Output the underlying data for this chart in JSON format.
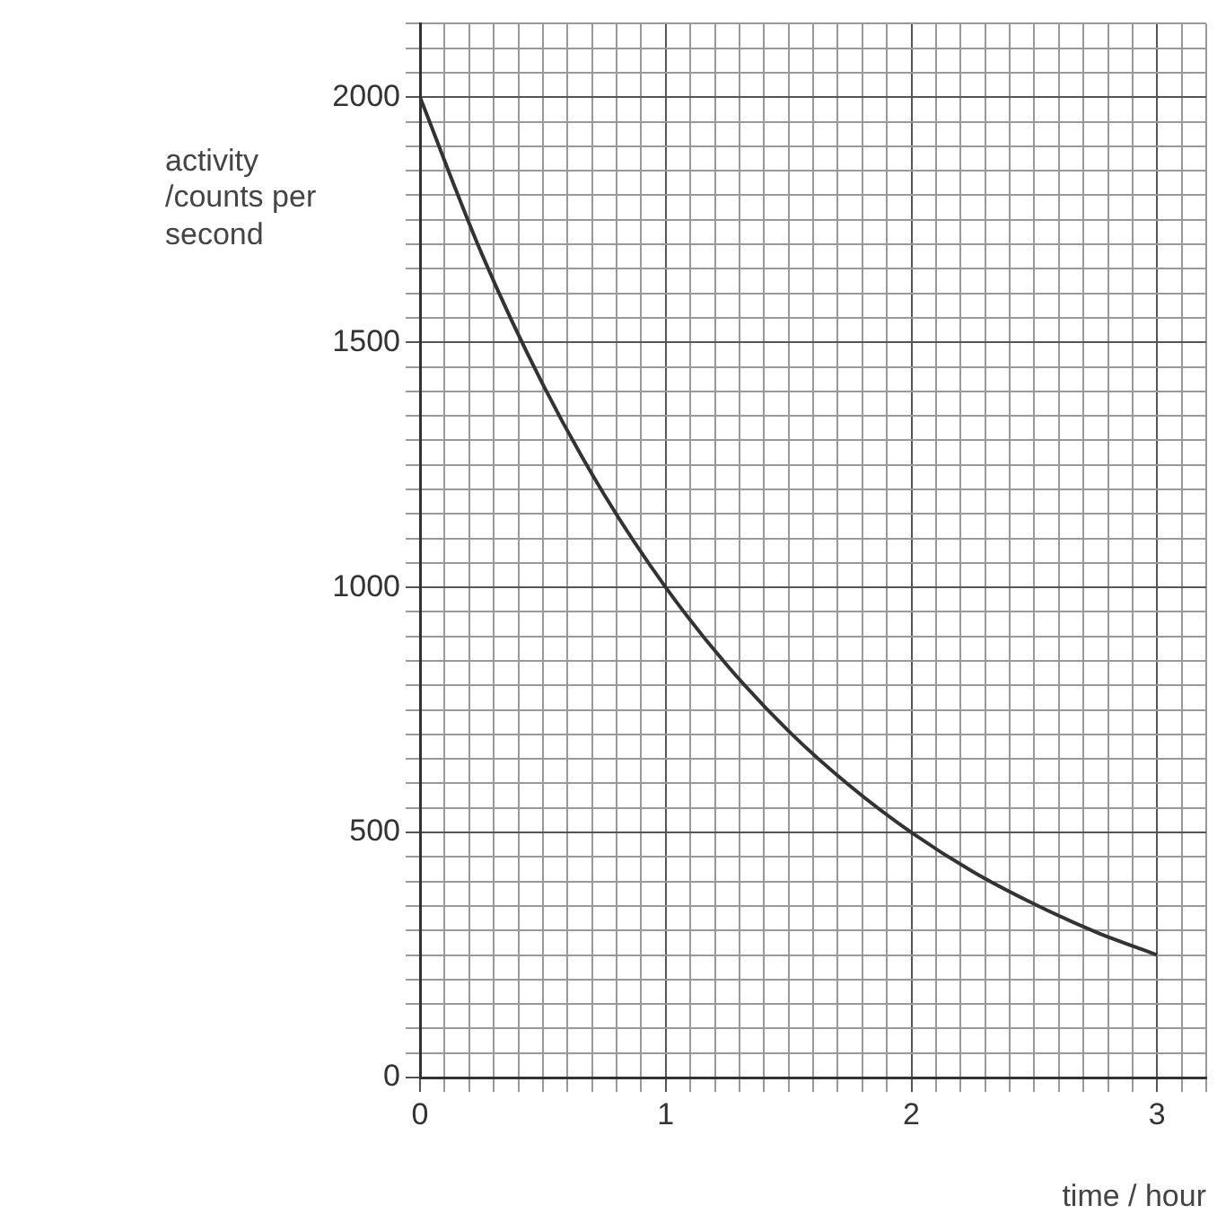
{
  "chart_data": {
    "type": "line",
    "xlabel": "time / hour",
    "ylabel": "activity\n/counts per\nsecond",
    "x": [
      0,
      0.25,
      0.5,
      0.75,
      1,
      1.25,
      1.5,
      1.75,
      2,
      2.25,
      2.5,
      2.75,
      3
    ],
    "series": [
      {
        "color": "#333333",
        "values": [
          2000,
          1682,
          1414,
          1189,
          1000,
          841,
          707,
          595,
          500,
          420,
          354,
          297,
          250
        ]
      }
    ],
    "xlim": [
      0,
      3.2
    ],
    "ylim": [
      0,
      2150
    ],
    "xticks": [
      0,
      {
        "value": 0.1,
        "label": null
      },
      {
        "value": 0.2,
        "label": null
      },
      {
        "value": 0.3,
        "label": null
      },
      {
        "value": 0.4,
        "label": null
      },
      {
        "value": 0.5,
        "label": null
      },
      {
        "value": 0.6,
        "label": null
      },
      {
        "value": 0.7,
        "label": null
      },
      {
        "value": 0.8,
        "label": null
      },
      {
        "value": 0.9,
        "label": null
      },
      1,
      {
        "value": 1.1,
        "label": null
      },
      {
        "value": 1.2,
        "label": null
      },
      {
        "value": 1.3,
        "label": null
      },
      {
        "value": 1.4,
        "label": null
      },
      {
        "value": 1.5,
        "label": null
      },
      {
        "value": 1.6,
        "label": null
      },
      {
        "value": 1.7,
        "label": null
      },
      {
        "value": 1.8,
        "label": null
      },
      {
        "value": 1.9,
        "label": null
      },
      2,
      {
        "value": 2.1,
        "label": null
      },
      {
        "value": 2.2,
        "label": null
      },
      {
        "value": 2.3,
        "label": null
      },
      {
        "value": 2.4,
        "label": null
      },
      {
        "value": 2.5,
        "label": null
      },
      {
        "value": 2.6,
        "label": null
      },
      {
        "value": 2.7,
        "label": null
      },
      {
        "value": 2.8,
        "label": null
      },
      {
        "value": 2.9,
        "label": null
      },
      3,
      {
        "value": 3.1,
        "label": null
      },
      {
        "value": 3.2,
        "label": null
      }
    ],
    "yticks": [
      0,
      {
        "value": 50,
        "label": null
      },
      {
        "value": 100,
        "label": null
      },
      {
        "value": 150,
        "label": null
      },
      {
        "value": 200,
        "label": null
      },
      {
        "value": 250,
        "label": null
      },
      {
        "value": 300,
        "label": null
      },
      {
        "value": 350,
        "label": null
      },
      {
        "value": 400,
        "label": null
      },
      {
        "value": 450,
        "label": null
      },
      500,
      {
        "value": 550,
        "label": null
      },
      {
        "value": 600,
        "label": null
      },
      {
        "value": 650,
        "label": null
      },
      {
        "value": 700,
        "label": null
      },
      {
        "value": 750,
        "label": null
      },
      {
        "value": 800,
        "label": null
      },
      {
        "value": 850,
        "label": null
      },
      {
        "value": 900,
        "label": null
      },
      {
        "value": 950,
        "label": null
      },
      1000,
      {
        "value": 1050,
        "label": null
      },
      {
        "value": 1100,
        "label": null
      },
      {
        "value": 1150,
        "label": null
      },
      {
        "value": 1200,
        "label": null
      },
      {
        "value": 1250,
        "label": null
      },
      {
        "value": 1300,
        "label": null
      },
      {
        "value": 1350,
        "label": null
      },
      {
        "value": 1400,
        "label": null
      },
      {
        "value": 1450,
        "label": null
      },
      1500,
      {
        "value": 1550,
        "label": null
      },
      {
        "value": 1600,
        "label": null
      },
      {
        "value": 1650,
        "label": null
      },
      {
        "value": 1700,
        "label": null
      },
      {
        "value": 1750,
        "label": null
      },
      {
        "value": 1800,
        "label": null
      },
      {
        "value": 1850,
        "label": null
      },
      {
        "value": 1900,
        "label": null
      },
      {
        "value": 1950,
        "label": null
      },
      2000,
      {
        "value": 2050,
        "label": null
      },
      {
        "value": 2100,
        "label": null
      },
      {
        "value": 2150,
        "label": null
      }
    ],
    "grid": true,
    "marker": "none",
    "line_style": "solid"
  }
}
